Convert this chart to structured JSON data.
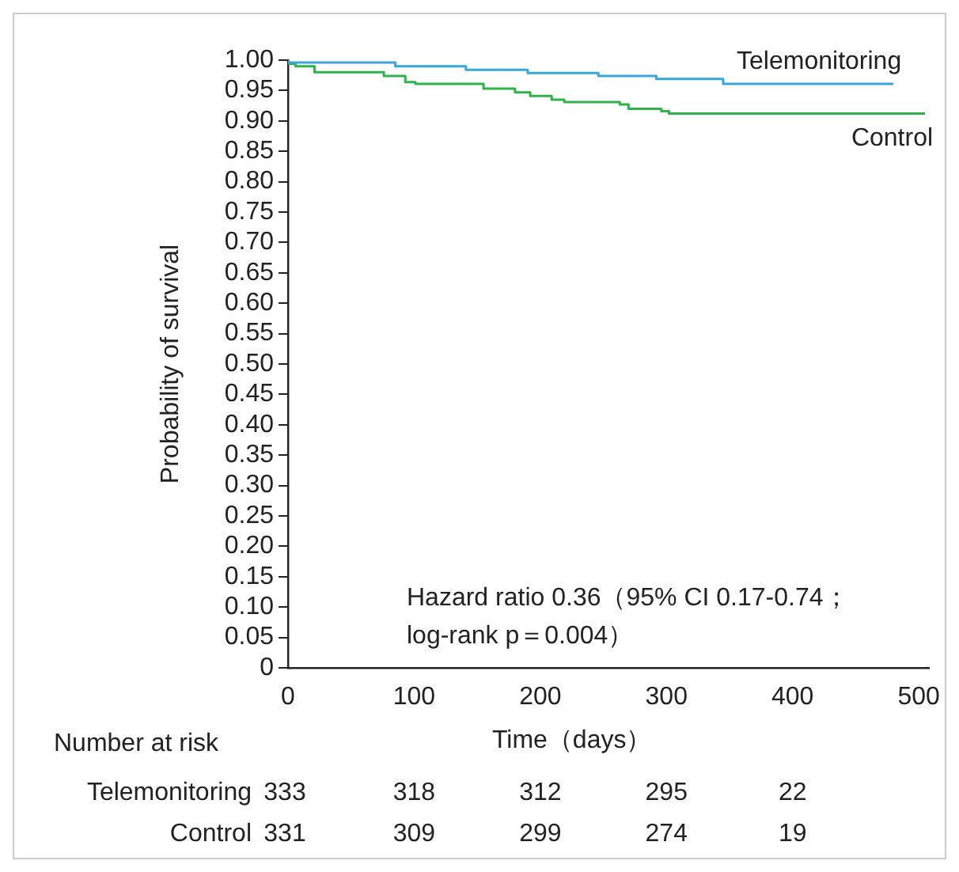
{
  "chart_data": {
    "type": "step",
    "xlabel": "Time（days）",
    "ylabel": "Probability of survival",
    "xlim": [
      0,
      508
    ],
    "xticks": [
      0,
      100,
      200,
      300,
      400,
      500
    ],
    "ylim": [
      0,
      1
    ],
    "yticks": [
      {
        "value": 0,
        "label": "0"
      },
      {
        "value": 0.05,
        "label": "0.05"
      },
      {
        "value": 0.1,
        "label": "0.10"
      },
      {
        "value": 0.15,
        "label": "0.15"
      },
      {
        "value": 0.2,
        "label": "0.20"
      },
      {
        "value": 0.25,
        "label": "0.25"
      },
      {
        "value": 0.3,
        "label": "0.30"
      },
      {
        "value": 0.35,
        "label": "0.35"
      },
      {
        "value": 0.4,
        "label": "0.40"
      },
      {
        "value": 0.45,
        "label": "0.45"
      },
      {
        "value": 0.5,
        "label": "0.50"
      },
      {
        "value": 0.55,
        "label": "0.55"
      },
      {
        "value": 0.6,
        "label": "0.60"
      },
      {
        "value": 0.65,
        "label": "0.65"
      },
      {
        "value": 0.7,
        "label": "0.70"
      },
      {
        "value": 0.75,
        "label": "0.75"
      },
      {
        "value": 0.8,
        "label": "0.80"
      },
      {
        "value": 0.85,
        "label": "0.85"
      },
      {
        "value": 0.9,
        "label": "0.90"
      },
      {
        "value": 0.95,
        "label": "0.95"
      },
      {
        "value": 1,
        "label": "1.00"
      }
    ],
    "series": [
      {
        "name": "Telemonitoring",
        "color": "#3aa6dd",
        "x": [
          0,
          85,
          141,
          190,
          246,
          292,
          345,
          480
        ],
        "values": [
          1.0,
          0.996,
          0.99,
          0.984,
          0.979,
          0.974,
          0.969,
          0.961
        ]
      },
      {
        "name": "Control",
        "color": "#2db34a",
        "x": [
          0,
          6,
          21,
          76,
          93,
          101,
          155,
          180,
          192,
          209,
          219,
          263,
          270,
          296,
          302,
          333,
          505
        ],
        "values": [
          1.0,
          0.994,
          0.99,
          0.98,
          0.974,
          0.964,
          0.961,
          0.953,
          0.947,
          0.941,
          0.935,
          0.931,
          0.927,
          0.92,
          0.916,
          0.912,
          0.912
        ]
      }
    ],
    "annotations": [
      "Hazard ratio 0.36（95% CI 0.17-0.74；",
      "log-rank p＝0.004）",
      "Number at risk",
      "Telemonitoring",
      "333",
      "318",
      "312",
      "295",
      "22",
      "Control",
      "331",
      "309",
      "299",
      "274",
      "19"
    ],
    "grid": false,
    "legend": false,
    "marker": "none",
    "line_style": "solid"
  }
}
